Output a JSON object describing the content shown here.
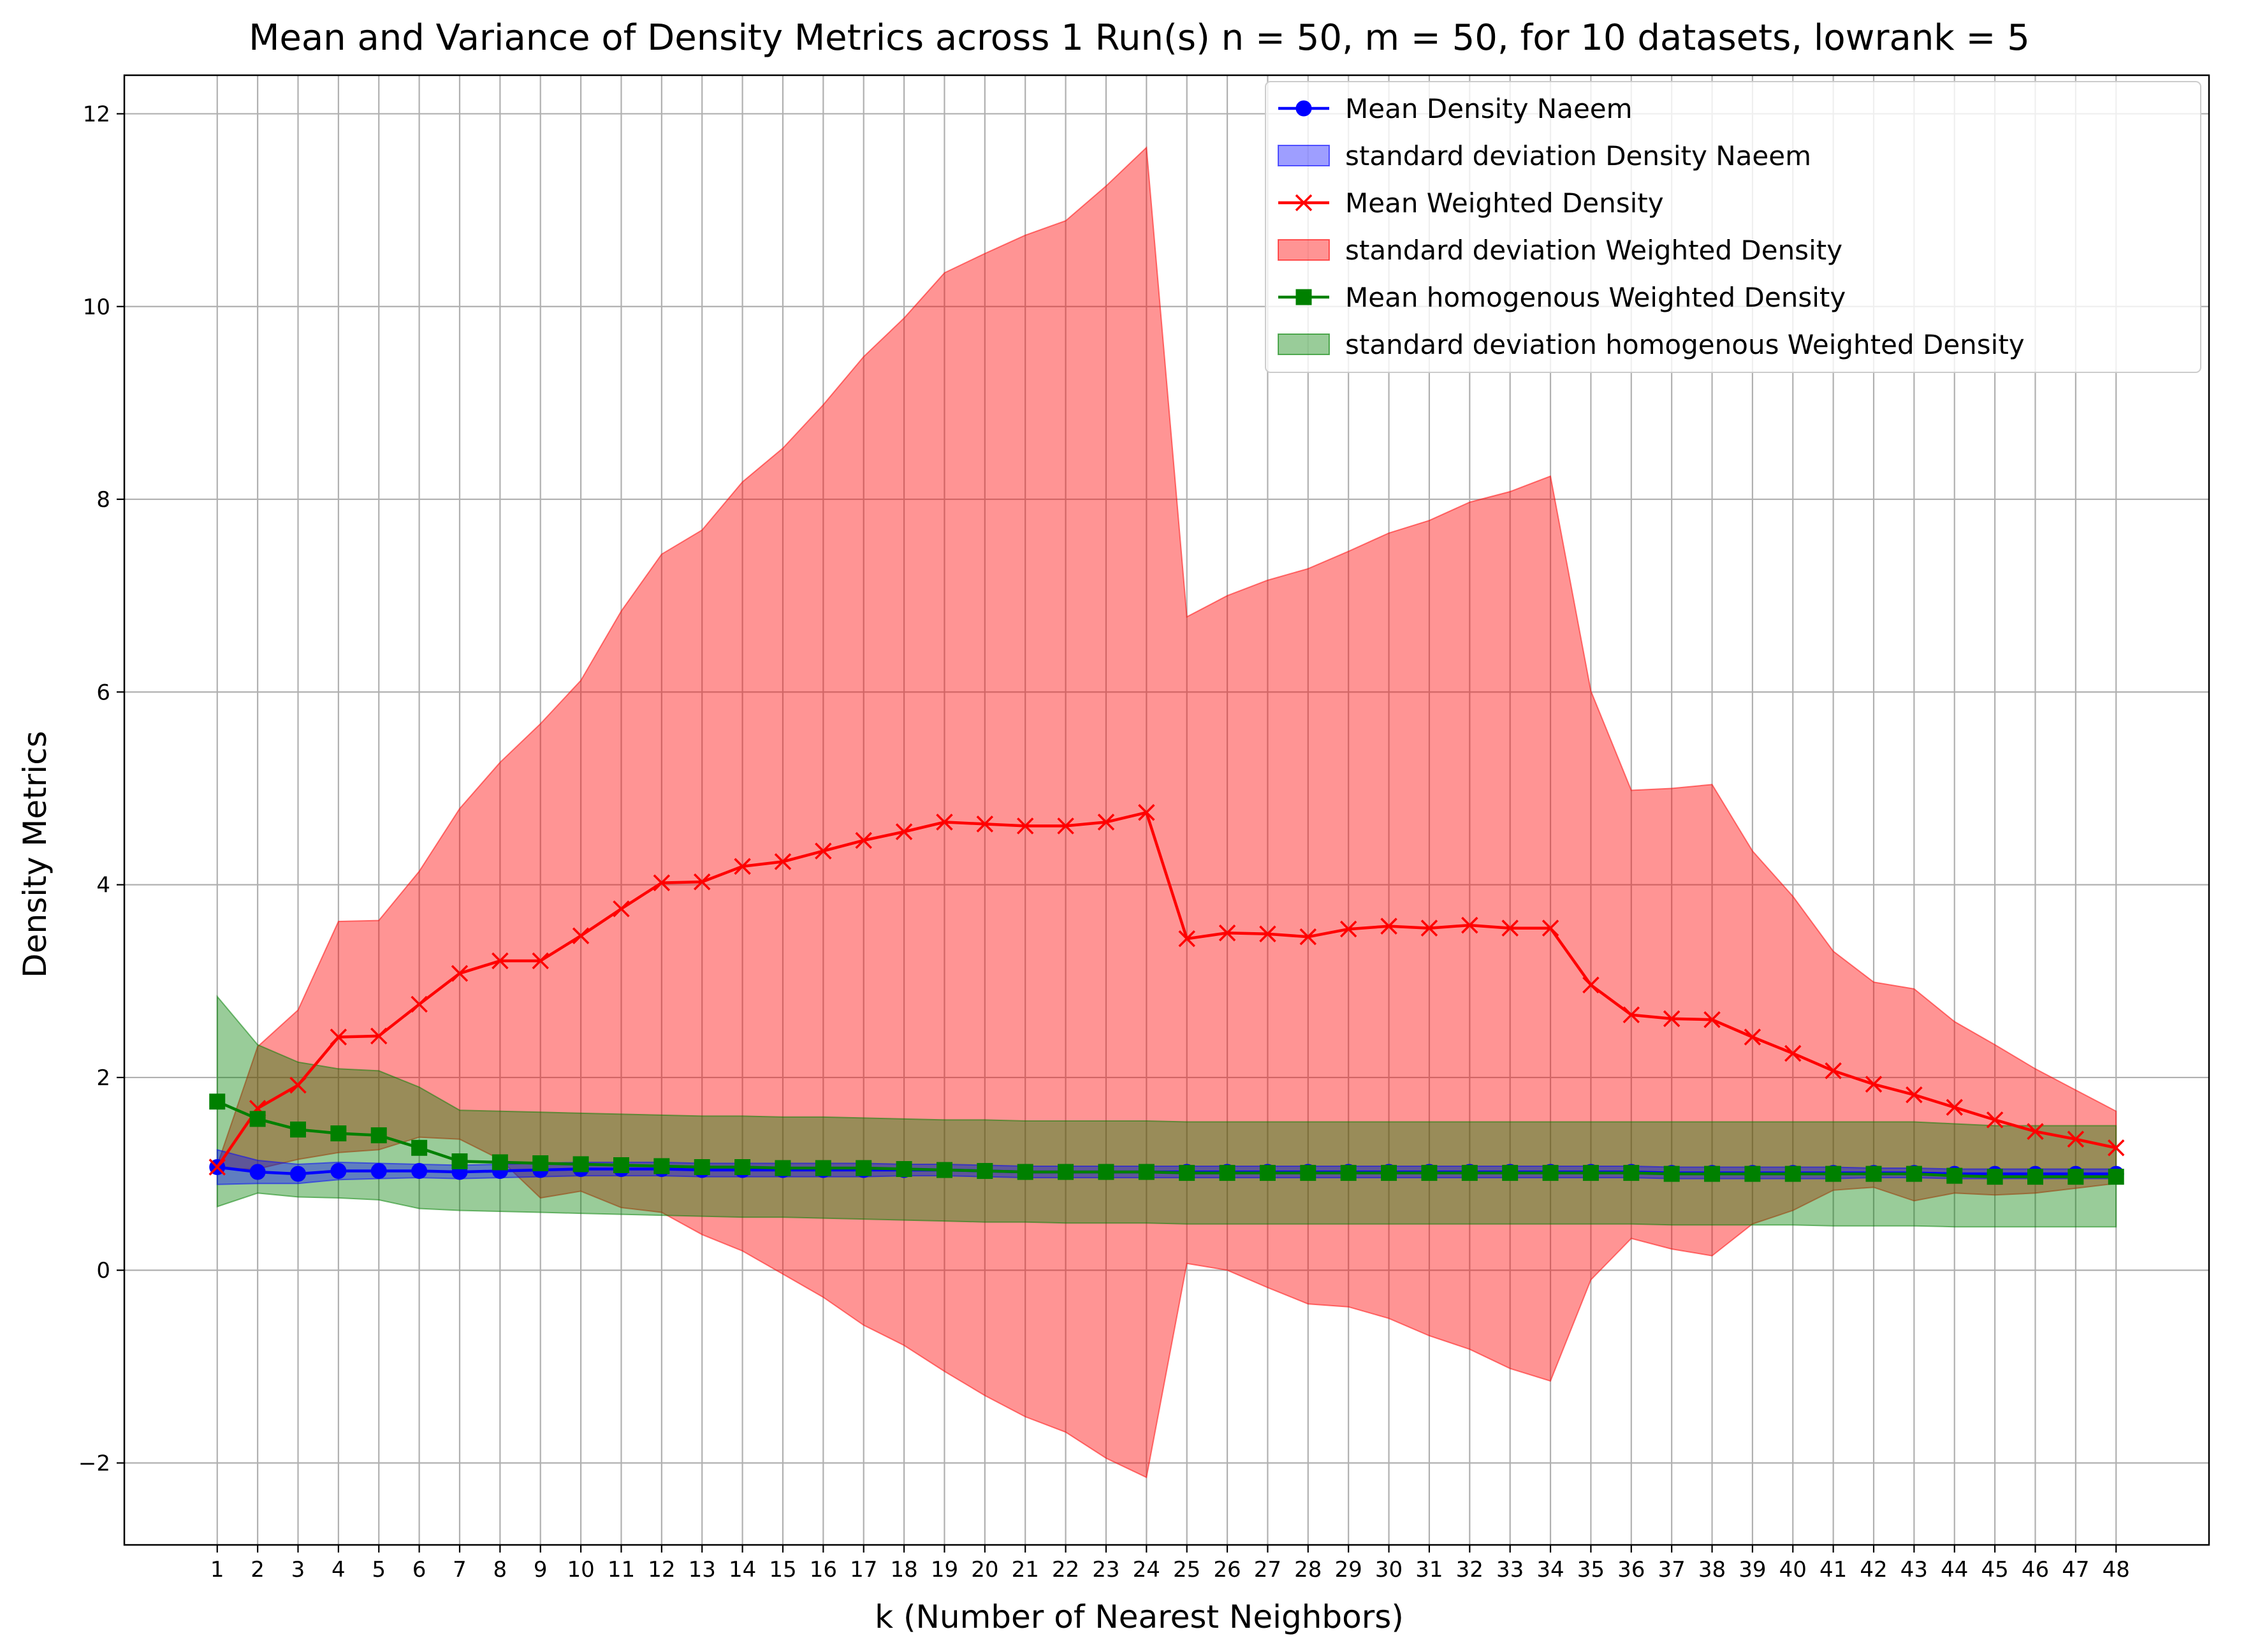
{
  "chart_data": {
    "type": "line",
    "title": "Mean and Variance of Density Metrics across 1 Run(s) n  = 50, m  = 50, for 10 datasets, lowrank = 5",
    "xlabel": "k (Number of Nearest Neighbors)",
    "ylabel": "Density Metrics",
    "x": [
      1,
      2,
      3,
      4,
      5,
      6,
      7,
      8,
      9,
      10,
      11,
      12,
      13,
      14,
      15,
      16,
      17,
      18,
      19,
      20,
      21,
      22,
      23,
      24,
      25,
      26,
      27,
      28,
      29,
      30,
      31,
      32,
      33,
      34,
      35,
      36,
      37,
      38,
      39,
      40,
      41,
      42,
      43,
      44,
      45,
      46,
      47,
      48
    ],
    "x_ticks": [
      "1",
      "2",
      "3",
      "4",
      "5",
      "6",
      "7",
      "8",
      "9",
      "10",
      "11",
      "12",
      "13",
      "14",
      "15",
      "16",
      "17",
      "18",
      "19",
      "20",
      "21",
      "22",
      "23",
      "24",
      "25",
      "26",
      "27",
      "28",
      "29",
      "30",
      "31",
      "32",
      "33",
      "34",
      "35",
      "36",
      "37",
      "38",
      "39",
      "40",
      "41",
      "42",
      "43",
      "44",
      "45",
      "46",
      "47",
      "48"
    ],
    "xlim": [
      -1.3,
      50.3
    ],
    "ylim": [
      -2.85,
      12.4
    ],
    "y_ticks": [
      -2,
      0,
      2,
      4,
      6,
      8,
      10,
      12
    ],
    "y_tick_labels": [
      "−2",
      "0",
      "2",
      "4",
      "6",
      "8",
      "10",
      "12"
    ],
    "grid": true,
    "legend_position": "top-right",
    "series": [
      {
        "name": "Mean Density Naeem",
        "band_name": "standard deviation Density Naeem",
        "color": "#0000ff",
        "marker": "circle",
        "mean": [
          1.07,
          1.02,
          1.0,
          1.03,
          1.03,
          1.03,
          1.02,
          1.03,
          1.04,
          1.05,
          1.05,
          1.05,
          1.04,
          1.04,
          1.04,
          1.04,
          1.04,
          1.04,
          1.04,
          1.03,
          1.02,
          1.02,
          1.02,
          1.02,
          1.02,
          1.02,
          1.02,
          1.02,
          1.02,
          1.02,
          1.02,
          1.02,
          1.02,
          1.02,
          1.02,
          1.02,
          1.01,
          1.01,
          1.01,
          1.01,
          1.01,
          1.01,
          1.01,
          1.0,
          1.0,
          1.0,
          1.0,
          1.0
        ],
        "std": [
          0.18,
          0.12,
          0.1,
          0.09,
          0.08,
          0.07,
          0.07,
          0.07,
          0.07,
          0.07,
          0.07,
          0.07,
          0.07,
          0.07,
          0.07,
          0.07,
          0.07,
          0.06,
          0.06,
          0.06,
          0.06,
          0.06,
          0.06,
          0.06,
          0.06,
          0.06,
          0.06,
          0.06,
          0.06,
          0.06,
          0.06,
          0.06,
          0.06,
          0.06,
          0.06,
          0.06,
          0.06,
          0.06,
          0.06,
          0.06,
          0.06,
          0.05,
          0.05,
          0.05,
          0.05,
          0.05,
          0.05,
          0.05
        ]
      },
      {
        "name": "Mean Weighted Density",
        "band_name": "standard deviation Weighted Density",
        "color": "#ff0000",
        "marker": "x",
        "mean": [
          1.07,
          1.68,
          1.92,
          2.42,
          2.43,
          2.76,
          3.08,
          3.21,
          3.21,
          3.47,
          3.75,
          4.02,
          4.03,
          4.19,
          4.24,
          4.35,
          4.46,
          4.55,
          4.65,
          4.63,
          4.61,
          4.61,
          4.65,
          4.75,
          3.44,
          3.5,
          3.49,
          3.46,
          3.54,
          3.57,
          3.55,
          3.58,
          3.55,
          3.55,
          2.96,
          2.65,
          2.61,
          2.6,
          2.42,
          2.25,
          2.07,
          1.93,
          1.82,
          1.69,
          1.56,
          1.44,
          1.36,
          1.27
        ],
        "lower": [
          1.05,
          1.05,
          1.15,
          1.22,
          1.25,
          1.38,
          1.36,
          1.15,
          0.75,
          0.82,
          0.65,
          0.6,
          0.37,
          0.2,
          -0.04,
          -0.28,
          -0.57,
          -0.78,
          -1.05,
          -1.3,
          -1.52,
          -1.68,
          -1.95,
          -2.15,
          0.07,
          0.0,
          -0.18,
          -0.35,
          -0.38,
          -0.5,
          -0.68,
          -0.82,
          -1.02,
          -1.15,
          -0.1,
          0.33,
          0.22,
          0.15,
          0.48,
          0.62,
          0.83,
          0.86,
          0.72,
          0.8,
          0.78,
          0.8,
          0.85,
          0.9
        ],
        "upper": [
          1.09,
          2.32,
          2.7,
          3.62,
          3.63,
          4.14,
          4.79,
          5.27,
          5.67,
          6.12,
          6.84,
          7.43,
          7.68,
          8.18,
          8.53,
          8.98,
          9.48,
          9.88,
          10.35,
          10.55,
          10.74,
          10.89,
          11.25,
          11.65,
          6.78,
          7.0,
          7.16,
          7.28,
          7.46,
          7.65,
          7.78,
          7.97,
          8.08,
          8.24,
          6.01,
          4.98,
          5.0,
          5.04,
          4.35,
          3.88,
          3.31,
          2.99,
          2.92,
          2.58,
          2.34,
          2.09,
          1.87,
          1.65
        ]
      },
      {
        "name": "Mean homogenous Weighted Density",
        "band_name": "standard deviation homogenous Weighted Density",
        "color": "#008000",
        "marker": "square",
        "mean": [
          1.75,
          1.57,
          1.46,
          1.42,
          1.4,
          1.27,
          1.13,
          1.12,
          1.11,
          1.1,
          1.09,
          1.08,
          1.07,
          1.07,
          1.06,
          1.06,
          1.06,
          1.05,
          1.04,
          1.03,
          1.02,
          1.02,
          1.02,
          1.02,
          1.01,
          1.01,
          1.01,
          1.01,
          1.01,
          1.01,
          1.01,
          1.01,
          1.01,
          1.01,
          1.01,
          1.01,
          1.0,
          1.0,
          1.0,
          1.0,
          1.0,
          1.0,
          1.0,
          0.98,
          0.97,
          0.97,
          0.97,
          0.97
        ],
        "lower": [
          0.66,
          0.8,
          0.76,
          0.75,
          0.73,
          0.64,
          0.62,
          0.61,
          0.6,
          0.59,
          0.58,
          0.57,
          0.56,
          0.55,
          0.55,
          0.54,
          0.53,
          0.52,
          0.51,
          0.5,
          0.5,
          0.49,
          0.49,
          0.49,
          0.48,
          0.48,
          0.48,
          0.48,
          0.48,
          0.48,
          0.48,
          0.48,
          0.48,
          0.48,
          0.48,
          0.48,
          0.47,
          0.47,
          0.47,
          0.47,
          0.46,
          0.46,
          0.46,
          0.45,
          0.45,
          0.45,
          0.45,
          0.45
        ],
        "upper": [
          2.84,
          2.34,
          2.16,
          2.09,
          2.07,
          1.9,
          1.66,
          1.65,
          1.64,
          1.63,
          1.62,
          1.61,
          1.6,
          1.6,
          1.59,
          1.59,
          1.58,
          1.57,
          1.56,
          1.56,
          1.55,
          1.55,
          1.55,
          1.55,
          1.54,
          1.54,
          1.54,
          1.54,
          1.54,
          1.54,
          1.54,
          1.54,
          1.54,
          1.54,
          1.54,
          1.54,
          1.54,
          1.54,
          1.54,
          1.54,
          1.54,
          1.54,
          1.54,
          1.52,
          1.5,
          1.5,
          1.5,
          1.5
        ]
      }
    ],
    "band_colors": {
      "blue": "#0000ff",
      "red": "#ff0000",
      "green": "#008000"
    }
  }
}
